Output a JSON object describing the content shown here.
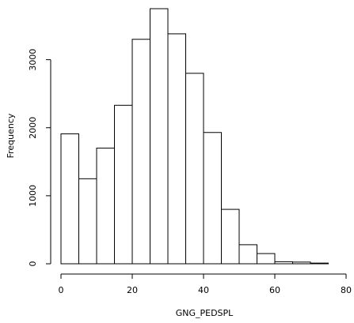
{
  "chart_data": {
    "type": "bar",
    "subtype": "histogram",
    "title": "",
    "xlabel": "GNG_PEDSPL",
    "ylabel": "Frequency",
    "bin_width": 5,
    "bins": [
      {
        "start": 0,
        "end": 5,
        "count": 1910
      },
      {
        "start": 5,
        "end": 10,
        "count": 1250
      },
      {
        "start": 10,
        "end": 15,
        "count": 1700
      },
      {
        "start": 15,
        "end": 20,
        "count": 2330
      },
      {
        "start": 20,
        "end": 25,
        "count": 3300
      },
      {
        "start": 25,
        "end": 30,
        "count": 3750
      },
      {
        "start": 30,
        "end": 35,
        "count": 3380
      },
      {
        "start": 35,
        "end": 40,
        "count": 2800
      },
      {
        "start": 40,
        "end": 45,
        "count": 1930
      },
      {
        "start": 45,
        "end": 50,
        "count": 800
      },
      {
        "start": 50,
        "end": 55,
        "count": 280
      },
      {
        "start": 55,
        "end": 60,
        "count": 150
      },
      {
        "start": 60,
        "end": 65,
        "count": 30
      },
      {
        "start": 65,
        "end": 70,
        "count": 25
      },
      {
        "start": 70,
        "end": 75,
        "count": 10
      }
    ],
    "xlim": [
      0,
      80
    ],
    "ylim": [
      0,
      3750
    ],
    "x_ticks": [
      "0",
      "20",
      "40",
      "60",
      "80"
    ],
    "y_ticks": [
      "0",
      "1000",
      "2000",
      "3000"
    ],
    "grid": false,
    "legend": "none"
  }
}
